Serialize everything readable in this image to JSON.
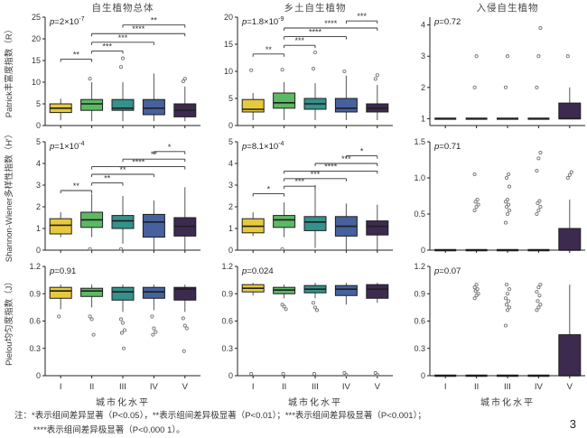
{
  "page": {
    "number": "3"
  },
  "figure": {
    "column_titles": [
      "自生植物总体",
      "乡土自生植物",
      "入侵自生植物"
    ],
    "row_labels": [
      "Patrick丰富度指数（R）",
      "Shannon-Wiener多样性指数（H′）",
      "Pielou均匀度指数（J）"
    ],
    "x_axis_label": "城市化水平",
    "x_categories": [
      "I",
      "II",
      "III",
      "IV",
      "V"
    ],
    "group_colors": [
      "#e6c93e",
      "#5cb963",
      "#35918b",
      "#46619c",
      "#3c2b4f"
    ],
    "axis_color": "#222222",
    "whisker_color": "#555555",
    "outlier_color": "#777777",
    "sig_color": "#333333"
  },
  "note": {
    "line1": "注：*表示组间差异显著（P<0.05），**表示组间差异极显著（P<0.01）；***表示组间差异极显著（P<0.001）；",
    "line2": "****表示组间差异极显著（P<0.000 1）。"
  },
  "chart_data": [
    {
      "id": "A",
      "type": "boxplot",
      "row": 0,
      "col": 0,
      "title": "自生植物总体",
      "p_label": {
        "main": "p=2×10",
        "exp": "-7"
      },
      "ylim": [
        0,
        25
      ],
      "ytick_values": [
        0,
        5,
        10,
        15,
        20,
        25
      ],
      "ytick_labels": [
        "0",
        "5",
        "10",
        "15",
        "20",
        "25"
      ],
      "boxes": [
        {
          "low": 1.2,
          "q1": 3,
          "median": 4,
          "q3": 5,
          "high": 6.2,
          "outliers": []
        },
        {
          "low": 1,
          "q1": 3.5,
          "median": 5,
          "q3": 6,
          "high": 10,
          "outliers": [
            10.8
          ]
        },
        {
          "low": 1,
          "q1": 3.5,
          "median": 4,
          "q3": 6,
          "high": 10,
          "outliers": [
            13.5,
            15.5
          ]
        },
        {
          "low": 1,
          "q1": 2.5,
          "median": 4,
          "q3": 6,
          "high": 12,
          "outliers": []
        },
        {
          "low": 1,
          "q1": 2,
          "median": 3.5,
          "q3": 5,
          "high": 9,
          "outliers": [
            10.2,
            10.8
          ]
        }
      ],
      "sig_bars": [
        {
          "from": 0,
          "to": 1,
          "label": "**",
          "y": 15.3
        },
        {
          "from": 1,
          "to": 2,
          "label": "***",
          "y": 17.2
        },
        {
          "from": 1,
          "to": 3,
          "label": "***",
          "y": 19.2
        },
        {
          "from": 1,
          "to": 4,
          "label": "****",
          "y": 21.2
        },
        {
          "from": 2,
          "to": 4,
          "label": "**",
          "y": 23.2
        }
      ]
    },
    {
      "id": "B",
      "type": "boxplot",
      "row": 0,
      "col": 1,
      "title": "乡土自生植物",
      "p_label": {
        "main": "p=1.8×10",
        "exp": "-9"
      },
      "ylim": [
        0,
        20
      ],
      "ytick_values": [
        0,
        5,
        10,
        15,
        20
      ],
      "ytick_labels": [
        "0",
        "5",
        "10",
        "15",
        "20"
      ],
      "boxes": [
        {
          "low": 1,
          "q1": 2.5,
          "median": 3,
          "q3": 4.8,
          "high": 6,
          "outliers": [
            10.2
          ]
        },
        {
          "low": 1,
          "q1": 3.2,
          "median": 4.2,
          "q3": 6,
          "high": 8,
          "outliers": [
            10.3
          ]
        },
        {
          "low": 1,
          "q1": 3,
          "median": 4,
          "q3": 5,
          "high": 7.8,
          "outliers": [
            10.5,
            13.5
          ]
        },
        {
          "low": 1,
          "q1": 2.5,
          "median": 3.2,
          "q3": 5,
          "high": 9.2,
          "outliers": [
            10
          ]
        },
        {
          "low": 1,
          "q1": 2.5,
          "median": 3.2,
          "q3": 4,
          "high": 7.5,
          "outliers": [
            8.6,
            9.3
          ]
        }
      ],
      "sig_bars": [
        {
          "from": 0,
          "to": 1,
          "label": "**",
          "y": 13.2
        },
        {
          "from": 1,
          "to": 2,
          "label": "***",
          "y": 14.8
        },
        {
          "from": 1,
          "to": 3,
          "label": "****",
          "y": 16.4
        },
        {
          "from": 1,
          "to": 4,
          "label": "****",
          "y": 18.0
        },
        {
          "from": 3,
          "to": 4,
          "label": "***",
          "y": 19.3
        }
      ]
    },
    {
      "id": "C",
      "type": "boxplot",
      "row": 0,
      "col": 2,
      "title": "入侵自生植物",
      "p_label": {
        "main": "p=0.72"
      },
      "ylim": [
        0.78,
        4.25
      ],
      "ytick_values": [
        1,
        2,
        3,
        4
      ],
      "ytick_labels": [
        "1",
        "2",
        "3",
        "4"
      ],
      "boxes": [
        {
          "low": 1,
          "q1": 1,
          "median": 1,
          "q3": 1,
          "high": 1,
          "outliers": []
        },
        {
          "low": 1,
          "q1": 1,
          "median": 1,
          "q3": 1,
          "high": 1,
          "outliers": [
            2,
            3
          ]
        },
        {
          "low": 1,
          "q1": 1,
          "median": 1,
          "q3": 1,
          "high": 1,
          "outliers": [
            2,
            3
          ]
        },
        {
          "low": 1,
          "q1": 1,
          "median": 1,
          "q3": 1,
          "high": 1,
          "outliers": [
            2,
            3,
            3.9
          ]
        },
        {
          "low": 1,
          "q1": 1,
          "median": 1,
          "q3": 1.5,
          "high": 2,
          "outliers": [
            3
          ]
        }
      ],
      "sig_bars": []
    },
    {
      "id": "D",
      "type": "boxplot",
      "row": 1,
      "col": 0,
      "title": "自生植物总体",
      "p_label": {
        "main": "p=1×10",
        "exp": "-4"
      },
      "ylim": [
        0,
        5
      ],
      "ytick_values": [
        0,
        1,
        2,
        3,
        4,
        5
      ],
      "ytick_labels": [
        "0",
        "1",
        "2",
        "3",
        "4",
        "5"
      ],
      "boxes": [
        {
          "low": 0.6,
          "q1": 0.75,
          "median": 1.15,
          "q3": 1.45,
          "high": 1.75,
          "outliers": []
        },
        {
          "low": 0.6,
          "q1": 1.05,
          "median": 1.4,
          "q3": 1.75,
          "high": 2.6,
          "outliers": [
            0.05
          ]
        },
        {
          "low": 0.3,
          "q1": 1.0,
          "median": 1.35,
          "q3": 1.6,
          "high": 2.5,
          "outliers": [
            0.05
          ]
        },
        {
          "low": 0,
          "q1": 0.6,
          "median": 1.3,
          "q3": 1.65,
          "high": 2.3,
          "outliers": []
        },
        {
          "low": 0,
          "q1": 0.65,
          "median": 1.1,
          "q3": 1.5,
          "high": 2.9,
          "outliers": []
        }
      ],
      "sig_bars": [
        {
          "from": 0,
          "to": 1,
          "label": "**",
          "y": 2.75
        },
        {
          "from": 1,
          "to": 2,
          "label": "**",
          "y": 3.1
        },
        {
          "from": 1,
          "to": 3,
          "label": "**",
          "y": 3.5
        },
        {
          "from": 1,
          "to": 4,
          "label": "****",
          "y": 3.85
        },
        {
          "from": 2,
          "to": 4,
          "label": "**",
          "y": 4.2
        },
        {
          "from": 3,
          "to": 4,
          "label": "*",
          "y": 4.55
        }
      ]
    },
    {
      "id": "E",
      "type": "boxplot",
      "row": 1,
      "col": 1,
      "title": "乡土自生植物",
      "p_label": {
        "main": "p=8.1×10",
        "exp": "-4"
      },
      "ylim": [
        0,
        5
      ],
      "ytick_values": [
        0,
        1,
        2,
        3,
        4,
        5
      ],
      "ytick_labels": [
        "0",
        "1",
        "2",
        "3",
        "4",
        "5"
      ],
      "boxes": [
        {
          "low": 0.65,
          "q1": 0.8,
          "median": 1.1,
          "q3": 1.45,
          "high": 1.75,
          "outliers": []
        },
        {
          "low": 0.6,
          "q1": 1.05,
          "median": 1.4,
          "q3": 1.6,
          "high": 2.2,
          "outliers": [
            0.05
          ]
        },
        {
          "low": 0.1,
          "q1": 0.9,
          "median": 1.3,
          "q3": 1.55,
          "high": 3.0,
          "outliers": []
        },
        {
          "low": 0,
          "q1": 0.65,
          "median": 1.1,
          "q3": 1.55,
          "high": 2.15,
          "outliers": []
        },
        {
          "low": 0,
          "q1": 0.7,
          "median": 1.1,
          "q3": 1.35,
          "high": 2.1,
          "outliers": []
        }
      ],
      "sig_bars": [
        {
          "from": 0,
          "to": 1,
          "label": "*",
          "y": 2.6
        },
        {
          "from": 1,
          "to": 2,
          "label": "***",
          "y": 2.95
        },
        {
          "from": 1,
          "to": 3,
          "label": "***",
          "y": 3.3
        },
        {
          "from": 1,
          "to": 4,
          "label": "****",
          "y": 3.65
        },
        {
          "from": 2,
          "to": 4,
          "label": "***",
          "y": 4.0
        },
        {
          "from": 3,
          "to": 4,
          "label": "*",
          "y": 4.35
        }
      ]
    },
    {
      "id": "F",
      "type": "boxplot",
      "row": 1,
      "col": 2,
      "title": "入侵自生植物",
      "p_label": {
        "main": "p=0.71"
      },
      "ylim": [
        0,
        1.5
      ],
      "ytick_values": [
        0,
        0.5,
        1.0,
        1.5
      ],
      "ytick_labels": [
        "0",
        "0.5",
        "1.0",
        "1.5"
      ],
      "boxes": [
        {
          "low": 0,
          "q1": 0,
          "median": 0,
          "q3": 0,
          "high": 0,
          "outliers": []
        },
        {
          "low": 0,
          "q1": 0,
          "median": 0,
          "q3": 0,
          "high": 0,
          "outliers": [
            0.55,
            0.6,
            0.63,
            0.67,
            0.7,
            1.05
          ]
        },
        {
          "low": 0,
          "q1": 0,
          "median": 0,
          "q3": 0,
          "high": 0,
          "outliers": [
            0.38,
            0.5,
            0.55,
            0.6,
            0.63,
            0.67,
            0.7,
            0.88,
            1.0,
            1.05
          ]
        },
        {
          "low": 0,
          "q1": 0,
          "median": 0,
          "q3": 0,
          "high": 0,
          "outliers": [
            0.5,
            0.55,
            0.6,
            0.65,
            0.68,
            1.1,
            1.27,
            1.35
          ]
        },
        {
          "low": 0,
          "q1": 0,
          "median": 0,
          "q3": 0.3,
          "high": 0.7,
          "outliers": [
            1.0,
            1.04,
            1.08
          ]
        }
      ],
      "sig_bars": []
    },
    {
      "id": "G",
      "type": "boxplot",
      "row": 2,
      "col": 0,
      "title": "自生植物总体",
      "p_label": {
        "main": "p=0.91"
      },
      "ylim": [
        0,
        1.2
      ],
      "ytick_values": [
        0,
        0.3,
        0.6,
        0.9,
        1.2
      ],
      "ytick_labels": [
        "0",
        "0.3",
        "0.6",
        "0.9",
        "1.2"
      ],
      "boxes": [
        {
          "low": 0.73,
          "q1": 0.85,
          "median": 0.93,
          "q3": 0.97,
          "high": 1.0,
          "outliers": [
            0.65
          ]
        },
        {
          "low": 0.75,
          "q1": 0.87,
          "median": 0.93,
          "q3": 0.96,
          "high": 1.0,
          "outliers": [
            0.65,
            0.62,
            0.45
          ]
        },
        {
          "low": 0.7,
          "q1": 0.83,
          "median": 0.92,
          "q3": 0.97,
          "high": 1.0,
          "outliers": [
            0.62,
            0.58,
            0.5,
            0.47,
            0.3
          ]
        },
        {
          "low": 0.72,
          "q1": 0.85,
          "median": 0.92,
          "q3": 0.97,
          "high": 1.0,
          "outliers": [
            0.65,
            0.52,
            0.48,
            0.45
          ]
        },
        {
          "low": 0.7,
          "q1": 0.83,
          "median": 0.95,
          "q3": 0.97,
          "high": 1.0,
          "outliers": [
            0.63,
            0.55,
            0.52,
            0.27
          ]
        }
      ],
      "sig_bars": []
    },
    {
      "id": "H",
      "type": "boxplot",
      "row": 2,
      "col": 1,
      "title": "乡土自生植物",
      "p_label": {
        "main": "p=0.024"
      },
      "ylim": [
        0,
        1.2
      ],
      "ytick_values": [
        0,
        0.3,
        0.6,
        0.9,
        1.2
      ],
      "ytick_labels": [
        "0",
        "0.3",
        "0.6",
        "0.9",
        "1.2"
      ],
      "boxes": [
        {
          "low": 0.88,
          "q1": 0.92,
          "median": 0.96,
          "q3": 1.0,
          "high": 1.02,
          "outliers": [
            0.02
          ]
        },
        {
          "low": 0.85,
          "q1": 0.9,
          "median": 0.94,
          "q3": 0.97,
          "high": 1.0,
          "outliers": [
            0.78,
            0.76,
            0.73,
            0.02
          ]
        },
        {
          "low": 0.85,
          "q1": 0.91,
          "median": 0.95,
          "q3": 0.99,
          "high": 1.02,
          "outliers": [
            0.8,
            0.75,
            0.72,
            0.02
          ]
        },
        {
          "low": 0.78,
          "q1": 0.88,
          "median": 0.95,
          "q3": 0.99,
          "high": 1.02,
          "outliers": [
            0.03,
            0.01
          ]
        },
        {
          "low": 0.8,
          "q1": 0.85,
          "median": 0.95,
          "q3": 1.0,
          "high": 1.02,
          "outliers": [
            0.03,
            0.01
          ]
        }
      ],
      "sig_bars": []
    },
    {
      "id": "I",
      "type": "boxplot",
      "row": 2,
      "col": 2,
      "title": "入侵自生植物",
      "p_label": {
        "main": "p=0.07"
      },
      "ylim": [
        0,
        1.2
      ],
      "ytick_values": [
        0,
        0.3,
        0.6,
        0.9,
        1.2
      ],
      "ytick_labels": [
        "0",
        "0.3",
        "0.6",
        "0.9",
        "1.2"
      ],
      "boxes": [
        {
          "low": 0,
          "q1": 0,
          "median": 0,
          "q3": 0,
          "high": 0,
          "outliers": []
        },
        {
          "low": 0,
          "q1": 0,
          "median": 0,
          "q3": 0,
          "high": 0,
          "outliers": [
            0.85,
            0.88,
            0.9,
            0.93,
            0.95,
            0.97,
            1.0
          ]
        },
        {
          "low": 0,
          "q1": 0,
          "median": 0,
          "q3": 0,
          "high": 0,
          "outliers": [
            0.55,
            0.72,
            0.75,
            0.78,
            0.82,
            0.85,
            0.9,
            0.95,
            1.0
          ]
        },
        {
          "low": 0,
          "q1": 0,
          "median": 0,
          "q3": 0,
          "high": 0,
          "outliers": [
            0.72,
            0.75,
            0.78,
            0.82,
            0.88,
            0.92,
            0.97,
            1.0
          ]
        },
        {
          "low": 0,
          "q1": 0,
          "median": 0,
          "q3": 0.45,
          "high": 1.0,
          "outliers": []
        }
      ],
      "sig_bars": []
    }
  ]
}
